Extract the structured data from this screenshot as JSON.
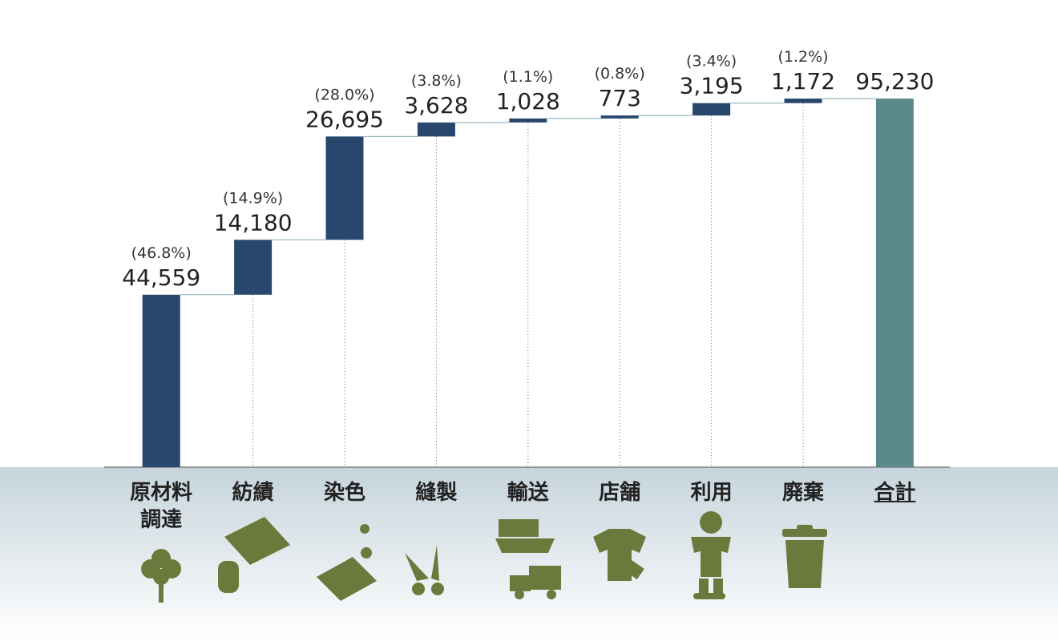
{
  "chart_data": {
    "type": "waterfall",
    "categories": [
      "原材料調達",
      "紡績",
      "染色",
      "縫製",
      "輸送",
      "店舗",
      "利用",
      "廃棄",
      "合計"
    ],
    "values": [
      44559,
      14180,
      26695,
      3628,
      1028,
      773,
      3195,
      1172,
      95230
    ],
    "value_labels": [
      "44,559",
      "14,180",
      "26,695",
      "3,628",
      "1,028",
      "773",
      "3,195",
      "1,172",
      "95,230"
    ],
    "share_labels": [
      "(46.8%)",
      "(14.9%)",
      "(28.0%)",
      "(3.8%)",
      "(1.1%)",
      "(0.8%)",
      "(3.4%)",
      "(1.2%)",
      null
    ],
    "color": "#27476d",
    "total_color": "#5b8a8c",
    "ylim": [
      0,
      100000
    ]
  }
}
